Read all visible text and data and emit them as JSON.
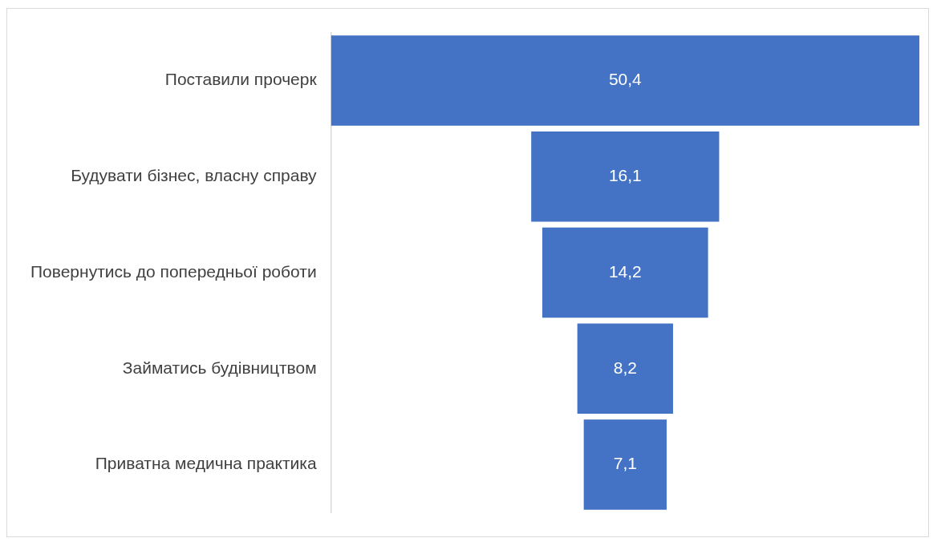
{
  "chart_data": {
    "type": "other",
    "categories": [
      "Поставили прочерк",
      "Будувати бізнес, власну справу",
      "Повернутись до попередньої роботи",
      "Займатись будівництвом",
      "Приватна медична практика"
    ],
    "values": [
      50.4,
      16.1,
      14.2,
      8.2,
      7.1
    ],
    "value_labels": [
      "50,4",
      "16,1",
      "14,2",
      "8,2",
      "7,1"
    ],
    "color": "#4472c4"
  }
}
